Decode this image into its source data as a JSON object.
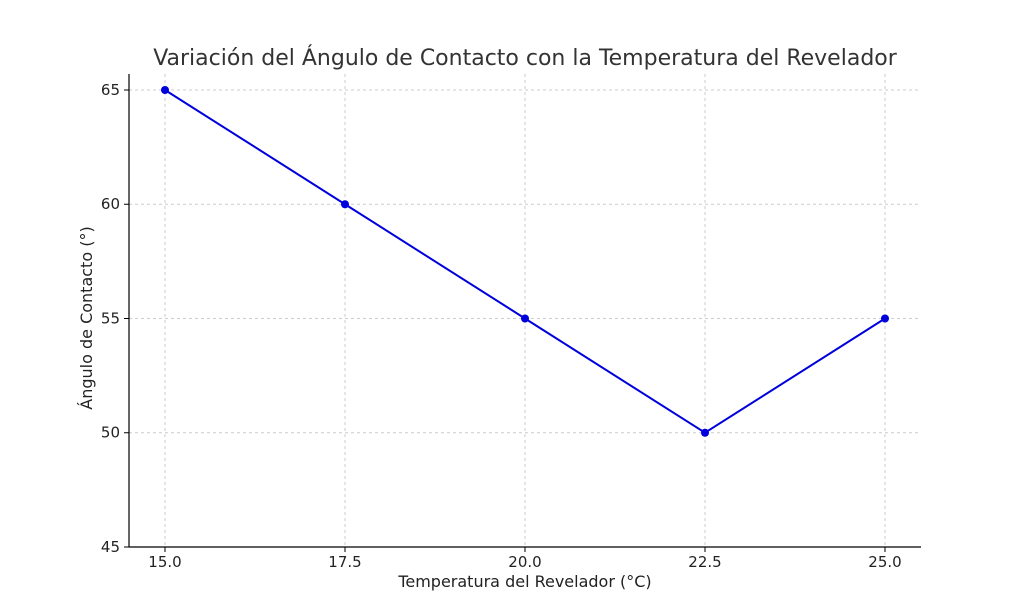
{
  "chart_data": {
    "type": "line",
    "title": "Variación del Ángulo de Contacto con la Temperatura del Revelador",
    "xlabel": "Temperatura del Revelador (°C)",
    "ylabel": "Ángulo de Contacto (°)",
    "x": [
      15.0,
      17.5,
      20.0,
      22.5,
      25.0
    ],
    "series": [
      {
        "values": [
          65,
          60,
          55,
          50,
          55
        ],
        "color": "#0000dd",
        "marker": "circle"
      }
    ],
    "xticks": [
      "15.0",
      "17.5",
      "20.0",
      "22.5",
      "25.0"
    ],
    "yticks": [
      "45",
      "50",
      "55",
      "60",
      "65"
    ],
    "xlim": [
      14.5,
      25.5
    ],
    "ylim": [
      45,
      65.7
    ],
    "grid": true
  }
}
